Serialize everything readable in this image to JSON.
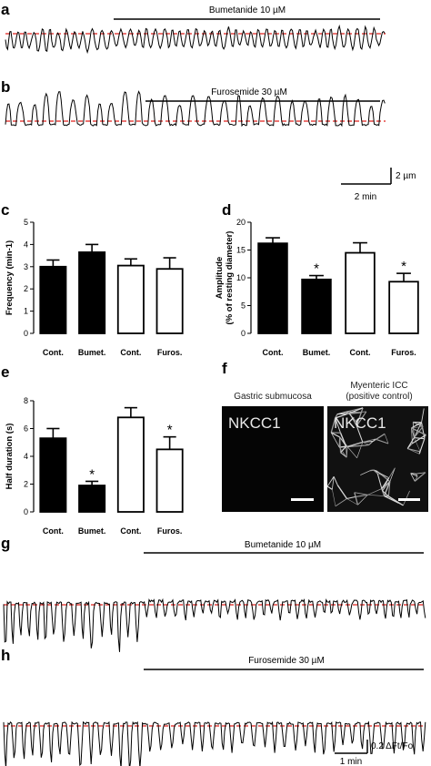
{
  "panels": {
    "a": {
      "label": "a",
      "drug": "Bumetanide 10 µM"
    },
    "b": {
      "label": "b",
      "drug": "Furosemide 30 µM"
    },
    "g": {
      "label": "g",
      "drug": "Bumetanide 10 µM"
    },
    "h": {
      "label": "h",
      "drug": "Furosemide 30 µM"
    },
    "scale_ab": {
      "vertical": "2 µm",
      "horizontal": "2 min"
    },
    "scale_gh": {
      "vertical": "0.2 ΔFt/Fo",
      "horizontal": "1 min"
    },
    "f": {
      "label": "f",
      "left_title": "Gastric submucosa",
      "right_title_line1": "Myenteric ICC",
      "right_title_line2": "(positive control)",
      "left_image_text": "NKCC1",
      "right_image_text": "NKCC1"
    }
  },
  "colors": {
    "control_bar": "#000000",
    "treated_bar": "#ffffff",
    "baseline_dash": "#e0201c",
    "trace": "#000000"
  },
  "chart_data": [
    {
      "id": "c",
      "type": "bar",
      "label": "c",
      "categories": [
        "Cont.",
        "Bumet.",
        "Cont.",
        "Furos."
      ],
      "values": [
        3.0,
        3.65,
        3.05,
        2.9
      ],
      "errors": [
        0.3,
        0.35,
        0.3,
        0.5
      ],
      "fills": [
        "black",
        "black",
        "white",
        "white"
      ],
      "significance": [
        "",
        "",
        "",
        ""
      ],
      "ylabel": "Frequency (min-1)",
      "ylim": [
        0,
        5
      ],
      "yticks": [
        0,
        1,
        2,
        3,
        4,
        5
      ]
    },
    {
      "id": "d",
      "type": "bar",
      "label": "d",
      "categories": [
        "Cont.",
        "Bumet.",
        "Cont.",
        "Furos."
      ],
      "values": [
        16.2,
        9.7,
        14.5,
        9.3
      ],
      "errors": [
        1.0,
        0.7,
        1.8,
        1.5
      ],
      "fills": [
        "black",
        "black",
        "white",
        "white"
      ],
      "significance": [
        "",
        "*",
        "",
        "*"
      ],
      "ylabel_line1": "Amplitude",
      "ylabel_line2": "(% of resting diameter)",
      "ylim": [
        0,
        20
      ],
      "yticks": [
        0,
        5,
        10,
        15,
        20
      ]
    },
    {
      "id": "e",
      "type": "bar",
      "label": "e",
      "categories": [
        "Cont.",
        "Bumet.",
        "Cont.",
        "Furos."
      ],
      "values": [
        5.3,
        1.9,
        6.8,
        4.5
      ],
      "errors": [
        0.7,
        0.3,
        0.7,
        0.9
      ],
      "fills": [
        "black",
        "black",
        "white",
        "white"
      ],
      "significance": [
        "",
        "*",
        "",
        "*"
      ],
      "ylabel": "Half duration (s)",
      "ylim": [
        0,
        8
      ],
      "yticks": [
        0,
        2,
        4,
        6,
        8
      ]
    }
  ]
}
